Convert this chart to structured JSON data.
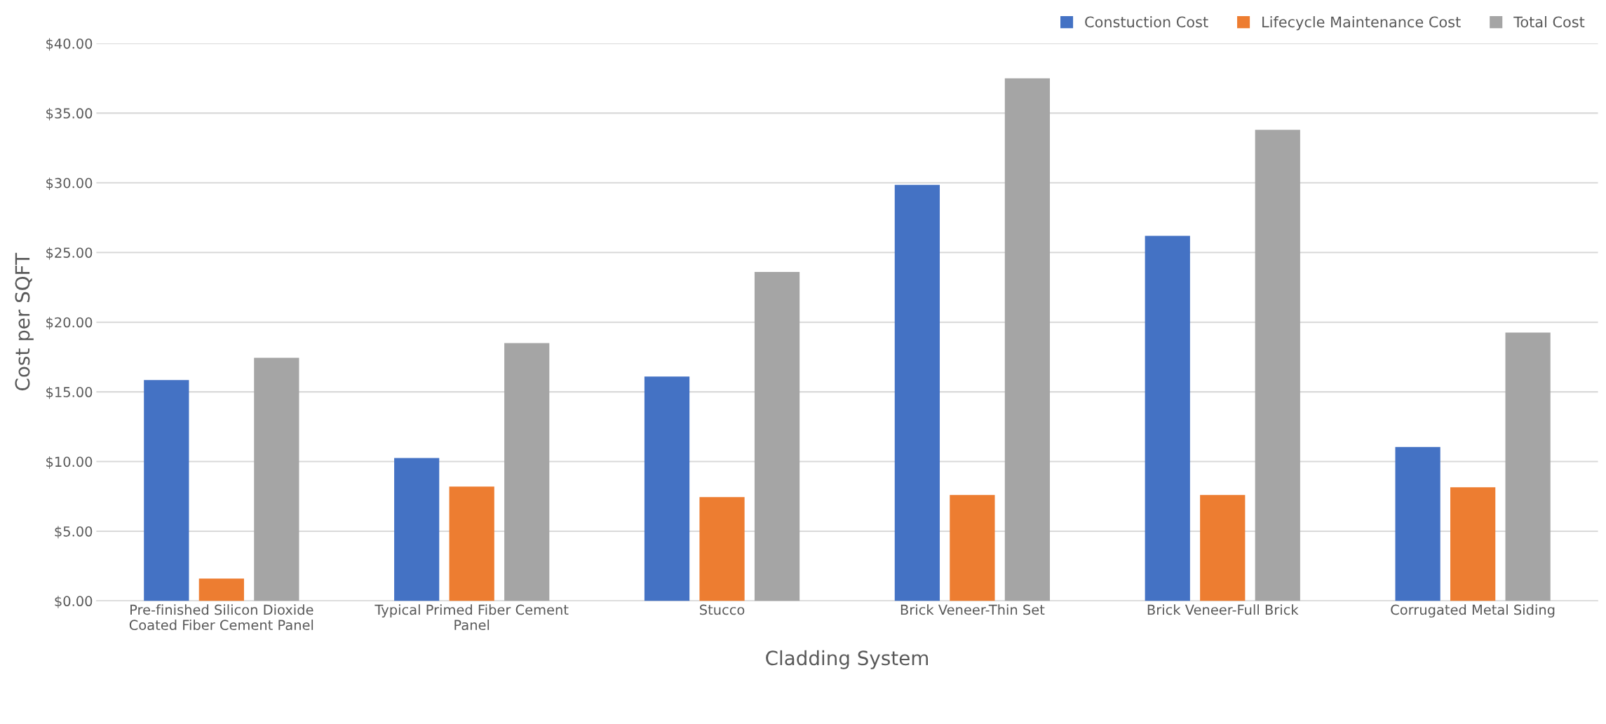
{
  "chart_data": {
    "type": "bar",
    "xlabel": "Cladding System",
    "ylabel": "Cost per SQFT",
    "categories": [
      "Pre-finished Silicon Dioxide\nCoated Fiber Cement Panel",
      "Typical Primed Fiber Cement\nPanel",
      "Stucco",
      "Brick Veneer-Thin Set",
      "Brick Veneer-Full Brick",
      "Corrugated Metal Siding"
    ],
    "series": [
      {
        "name": "Constuction Cost",
        "color": "#4472c4",
        "values": [
          15.85,
          10.25,
          16.1,
          29.85,
          26.2,
          11.05
        ]
      },
      {
        "name": "Lifecycle Maintenance Cost",
        "color": "#ed7d31",
        "values": [
          1.6,
          8.2,
          7.45,
          7.6,
          7.6,
          8.15
        ]
      },
      {
        "name": "Total Cost",
        "color": "#a5a5a5",
        "values": [
          17.45,
          18.5,
          23.6,
          37.5,
          33.8,
          19.25
        ]
      }
    ],
    "ylim": [
      0,
      40
    ],
    "yticks": [
      {
        "value": 0,
        "label": "$0.00"
      },
      {
        "value": 5,
        "label": "$5.00"
      },
      {
        "value": 10,
        "label": "$10.00"
      },
      {
        "value": 15,
        "label": "$15.00"
      },
      {
        "value": 20,
        "label": "$20.00"
      },
      {
        "value": 25,
        "label": "$25.00"
      },
      {
        "value": 30,
        "label": "$30.00"
      },
      {
        "value": 35,
        "label": "$35.00"
      },
      {
        "value": 40,
        "label": "$40.00"
      }
    ],
    "grid": "y",
    "legend": "top right"
  }
}
